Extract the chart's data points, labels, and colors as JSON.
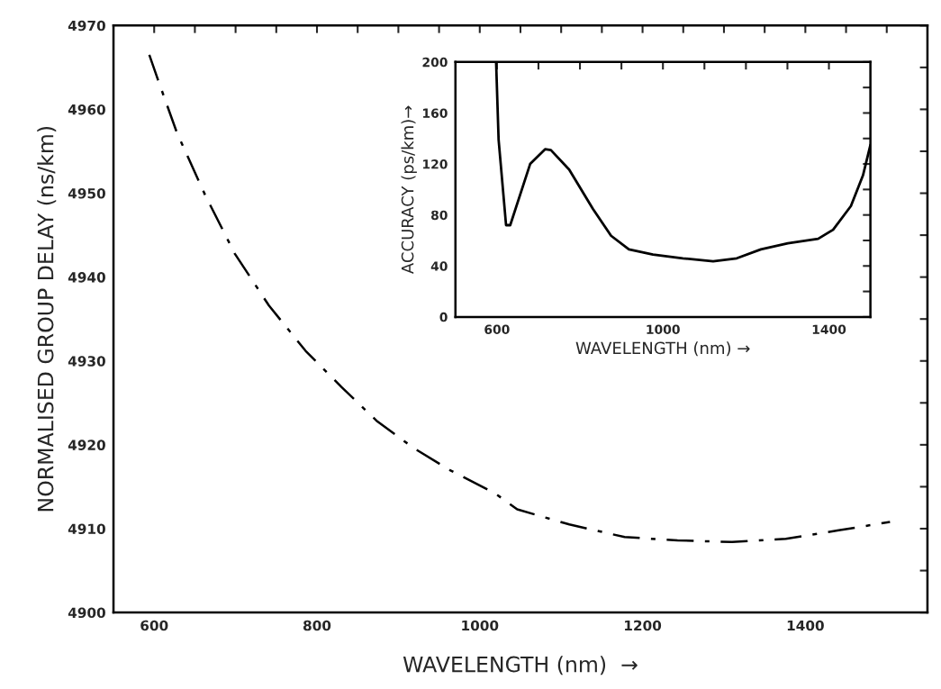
{
  "chart_data": [
    {
      "type": "line",
      "xlabel": "WAVELENGTH (nm)  →",
      "ylabel": "NORMALISED GROUP DELAY (ns/km)",
      "line_style": "dashed",
      "marker": "none",
      "grid": false,
      "legend": false,
      "xlim": [
        550,
        1550
      ],
      "ylim": [
        4900,
        4970
      ],
      "xticks": [
        600,
        {
          "value": 650,
          "label": null
        },
        {
          "value": 700,
          "label": null
        },
        {
          "value": 750,
          "label": null
        },
        800,
        {
          "value": 850,
          "label": null
        },
        {
          "value": 900,
          "label": null
        },
        {
          "value": 950,
          "label": null
        },
        1000,
        {
          "value": 1050,
          "label": null
        },
        {
          "value": 1100,
          "label": null
        },
        {
          "value": 1150,
          "label": null
        },
        1200,
        {
          "value": 1250,
          "label": null
        },
        {
          "value": 1300,
          "label": null
        },
        {
          "value": 1350,
          "label": null
        },
        1400,
        {
          "value": 1450,
          "label": null
        },
        {
          "value": 1500,
          "label": null
        }
      ],
      "yticks": [
        4900,
        {
          "value": 4905,
          "label": null
        },
        4910,
        {
          "value": 4915,
          "label": null
        },
        4920,
        {
          "value": 4925,
          "label": null
        },
        4930,
        {
          "value": 4935,
          "label": null
        },
        4940,
        {
          "value": 4945,
          "label": null
        },
        4950,
        {
          "value": 4955,
          "label": null
        },
        4960,
        {
          "value": 4965,
          "label": null
        },
        4970
      ],
      "series": [
        {
          "color": "#000000",
          "x": [
            594,
            604,
            628,
            663,
            699,
            741,
            786,
            830,
            874,
            919,
            963,
            1019,
            1046,
            1110,
            1178,
            1243,
            1310,
            1376,
            1441,
            1504
          ],
          "values": [
            4966.5,
            4963.7,
            4957.2,
            4949.7,
            4942.8,
            4936.6,
            4931.2,
            4926.9,
            4922.8,
            4919.6,
            4917.0,
            4914.2,
            4912.3,
            4910.5,
            4909.0,
            4908.6,
            4908.4,
            4908.8,
            4909.8,
            4910.8
          ]
        }
      ]
    },
    {
      "type": "line",
      "xlabel": "WAVELENGTH (nm) →",
      "ylabel": "ACCURACY (ps/km)→",
      "line_style": "solid",
      "marker": "none",
      "grid": false,
      "legend": false,
      "xlim": [
        500,
        1500
      ],
      "ylim": [
        0,
        200
      ],
      "xticks": [
        600,
        {
          "value": 700,
          "label": null
        },
        {
          "value": 800,
          "label": null
        },
        {
          "value": 900,
          "label": null
        },
        1000,
        {
          "value": 1100,
          "label": null
        },
        {
          "value": 1200,
          "label": null
        },
        {
          "value": 1300,
          "label": null
        },
        1400
      ],
      "yticks": [
        0,
        {
          "value": 20,
          "label": null
        },
        40,
        {
          "value": 60,
          "label": null
        },
        80,
        {
          "value": 100,
          "label": null
        },
        120,
        {
          "value": 140,
          "label": null
        },
        160,
        {
          "value": 180,
          "label": null
        },
        200
      ],
      "series": [
        {
          "color": "#000000",
          "x": [
            598,
            604,
            622,
            632,
            680,
            716,
            730,
            774,
            831,
            875,
            918,
            976,
            1048,
            1121,
            1178,
            1236,
            1301,
            1374,
            1410,
            1453,
            1482,
            1500
          ],
          "values": [
            200,
            139,
            72,
            72,
            120,
            131.6,
            130.9,
            115.6,
            84.9,
            63.7,
            53,
            49,
            46,
            43.6,
            46,
            53,
            57.8,
            61.3,
            68.4,
            87,
            111,
            135
          ]
        }
      ]
    }
  ]
}
